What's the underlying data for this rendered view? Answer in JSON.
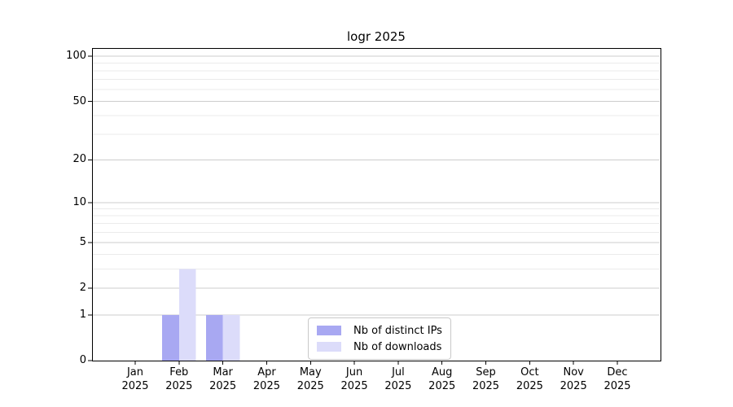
{
  "chart_data": {
    "type": "bar",
    "title": "logr 2025",
    "categories": [
      "Jan",
      "Feb",
      "Mar",
      "Apr",
      "May",
      "Jun",
      "Jul",
      "Aug",
      "Sep",
      "Oct",
      "Nov",
      "Dec"
    ],
    "x_year_label": "2025",
    "series": [
      {
        "name": "Nb of distinct IPs",
        "color": "#a8a8f2",
        "values": [
          0,
          1,
          1,
          0,
          0,
          0,
          0,
          0,
          0,
          0,
          0,
          0
        ]
      },
      {
        "name": "Nb of downloads",
        "color": "#dcdcfa",
        "values": [
          0,
          3,
          1,
          0,
          0,
          0,
          0,
          0,
          0,
          0,
          0,
          0
        ]
      }
    ],
    "xlabel": "",
    "ylabel": "",
    "y_scale": "log1p",
    "ylim": [
      0,
      113.5
    ],
    "y_ticks": [
      0,
      1,
      2,
      5,
      10,
      20,
      50,
      100
    ],
    "y_minor_gridlines": [
      3,
      4,
      6,
      7,
      8,
      9,
      30,
      40,
      60,
      70,
      80,
      90
    ],
    "grid": "horizontal",
    "legend_position": "inside-bottom-center",
    "colors": {
      "background": "#ffffff",
      "grid_major": "#cccccc",
      "grid_minor": "#ebebeb",
      "axis": "#000000",
      "text": "#000000",
      "legend_border": "#c9c9c9"
    }
  }
}
